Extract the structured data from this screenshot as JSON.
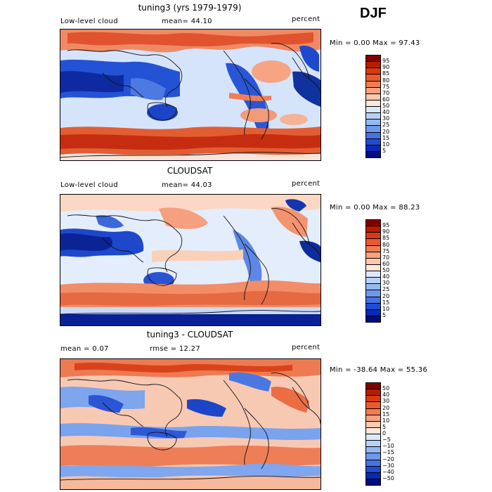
{
  "season": "DJF",
  "panels": [
    {
      "title": "tuning3 (yrs 1979-1979)",
      "left_label": "Low-level cloud",
      "middle_label": "mean=  44.10",
      "unit": "percent",
      "minmax": "Min =   0.00 Max =  97.43",
      "colorbar": {
        "labels": [
          "95",
          "90",
          "85",
          "80",
          "75",
          "70",
          "60",
          "50",
          "40",
          "30",
          "25",
          "20",
          "15",
          "10",
          "5"
        ],
        "colors": [
          "#800000",
          "#b51c00",
          "#d93a10",
          "#eb5a2e",
          "#f37c55",
          "#f9a27f",
          "#fcc8ae",
          "#fde9dc",
          "#dce9fb",
          "#b8d2f7",
          "#93b8f2",
          "#6e98ec",
          "#4673e3",
          "#1f4cd6",
          "#0a2ab4",
          "#000c80"
        ]
      }
    },
    {
      "title": "CLOUDSAT",
      "left_label": "Low-level cloud",
      "middle_label": "mean=  44.03",
      "unit": "percent",
      "minmax": "Min =   0.00 Max =  88.23",
      "colorbar": {
        "labels": [
          "95",
          "90",
          "85",
          "80",
          "75",
          "70",
          "60",
          "50",
          "40",
          "30",
          "25",
          "20",
          "15",
          "10",
          "5"
        ],
        "colors": [
          "#800000",
          "#b51c00",
          "#d93a10",
          "#eb5a2e",
          "#f37c55",
          "#f9a27f",
          "#fcc8ae",
          "#fde9dc",
          "#dce9fb",
          "#b8d2f7",
          "#93b8f2",
          "#6e98ec",
          "#4673e3",
          "#1f4cd6",
          "#0a2ab4",
          "#000c80"
        ]
      }
    },
    {
      "title": "tuning3 - CLOUDSAT",
      "left_label": "mean =   0.07",
      "middle_label": "rmse =  12.27",
      "unit": "percent",
      "minmax": "Min = -38.64 Max =  55.36",
      "colorbar": {
        "labels": [
          "50",
          "40",
          "30",
          "20",
          "15",
          "10",
          "5",
          "0",
          "−5",
          "−10",
          "−15",
          "−20",
          "−30",
          "−40",
          "−50"
        ],
        "colors": [
          "#800000",
          "#b51c00",
          "#d93a10",
          "#eb5a2e",
          "#f37c55",
          "#f9a27f",
          "#fcc8ae",
          "#fde9dc",
          "#dce9fb",
          "#b8d2f7",
          "#93b8f2",
          "#6e98ec",
          "#4673e3",
          "#1f4cd6",
          "#0a2ab4",
          "#000c80"
        ]
      }
    }
  ]
}
